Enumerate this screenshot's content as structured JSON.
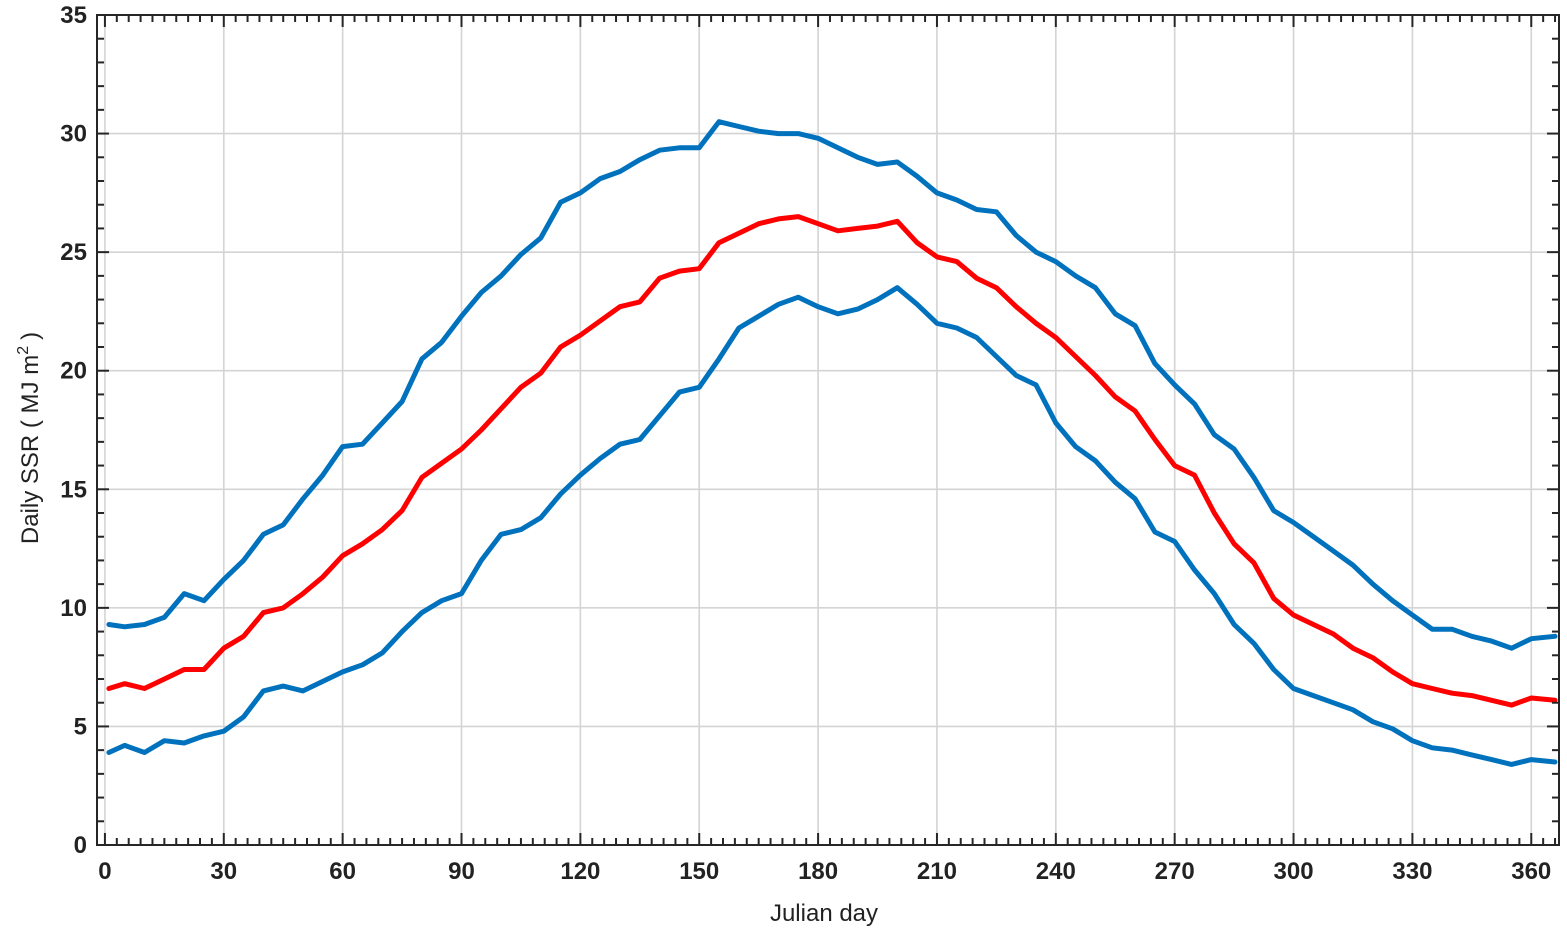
{
  "chart_data": {
    "type": "line",
    "title": "",
    "xlabel": "Julian day",
    "ylabel": "Daily SSR ( MJ m",
    "ylabel_sup": "2",
    "ylabel_close": ")",
    "xlim": [
      -2,
      367
    ],
    "ylim": [
      0,
      35
    ],
    "x_ticks": [
      0,
      30,
      60,
      90,
      120,
      150,
      180,
      210,
      240,
      270,
      300,
      330,
      360
    ],
    "x_tick_labels": [
      "0",
      "30",
      "60",
      "90",
      "120",
      "150",
      "180",
      "210",
      "240",
      "270",
      "300",
      "330",
      "360"
    ],
    "y_ticks": [
      0,
      5,
      10,
      15,
      20,
      25,
      30,
      35
    ],
    "y_tick_labels": [
      "0",
      "5",
      "10",
      "15",
      "20",
      "25",
      "30",
      "35"
    ],
    "grid": true,
    "series": [
      {
        "color": "#0072bd",
        "x": [
          1,
          5,
          10,
          15,
          20,
          25,
          30,
          35,
          40,
          45,
          50,
          55,
          60,
          65,
          70,
          75,
          80,
          85,
          90,
          95,
          100,
          105,
          110,
          115,
          120,
          125,
          130,
          135,
          140,
          145,
          150,
          155,
          160,
          165,
          170,
          175,
          180,
          185,
          190,
          195,
          200,
          205,
          210,
          215,
          220,
          225,
          230,
          235,
          240,
          245,
          250,
          255,
          260,
          265,
          270,
          275,
          280,
          285,
          290,
          295,
          300,
          305,
          310,
          315,
          320,
          325,
          330,
          335,
          340,
          345,
          350,
          355,
          360,
          366
        ],
        "values": [
          9.3,
          9.2,
          9.3,
          9.6,
          10.6,
          10.3,
          11.2,
          12.0,
          13.1,
          13.5,
          14.6,
          15.6,
          16.8,
          16.9,
          17.8,
          18.7,
          20.5,
          21.2,
          22.3,
          23.3,
          24.0,
          24.9,
          25.6,
          27.1,
          27.5,
          28.1,
          28.4,
          28.9,
          29.3,
          29.4,
          29.4,
          30.5,
          30.3,
          30.1,
          30.0,
          30.0,
          29.8,
          29.4,
          29.0,
          28.7,
          28.8,
          28.2,
          27.5,
          27.2,
          26.8,
          26.7,
          25.7,
          25.0,
          24.6,
          24.0,
          23.5,
          22.4,
          21.9,
          20.3,
          19.4,
          18.6,
          17.3,
          16.7,
          15.5,
          14.1,
          13.6,
          13.0,
          12.4,
          11.8,
          11.0,
          10.3,
          9.7,
          9.1,
          9.1,
          8.8,
          8.6,
          8.3,
          8.7,
          8.8
        ]
      },
      {
        "color": "#ff0000",
        "x": [
          1,
          5,
          10,
          15,
          20,
          25,
          30,
          35,
          40,
          45,
          50,
          55,
          60,
          65,
          70,
          75,
          80,
          85,
          90,
          95,
          100,
          105,
          110,
          115,
          120,
          125,
          130,
          135,
          140,
          145,
          150,
          155,
          160,
          165,
          170,
          175,
          180,
          185,
          190,
          195,
          200,
          205,
          210,
          215,
          220,
          225,
          230,
          235,
          240,
          245,
          250,
          255,
          260,
          265,
          270,
          275,
          280,
          285,
          290,
          295,
          300,
          305,
          310,
          315,
          320,
          325,
          330,
          335,
          340,
          345,
          350,
          355,
          360,
          366
        ],
        "values": [
          6.6,
          6.8,
          6.6,
          7.0,
          7.4,
          7.4,
          8.3,
          8.8,
          9.8,
          10.0,
          10.6,
          11.3,
          12.2,
          12.7,
          13.3,
          14.1,
          15.5,
          16.1,
          16.7,
          17.5,
          18.4,
          19.3,
          19.9,
          21.0,
          21.5,
          22.1,
          22.7,
          22.9,
          23.9,
          24.2,
          24.3,
          25.4,
          25.8,
          26.2,
          26.4,
          26.5,
          26.2,
          25.9,
          26.0,
          26.1,
          26.3,
          25.4,
          24.8,
          24.6,
          23.9,
          23.5,
          22.7,
          22.0,
          21.4,
          20.6,
          19.8,
          18.9,
          18.3,
          17.1,
          16.0,
          15.6,
          14.0,
          12.7,
          11.9,
          10.4,
          9.7,
          9.3,
          8.9,
          8.3,
          7.9,
          7.3,
          6.8,
          6.6,
          6.4,
          6.3,
          6.1,
          5.9,
          6.2,
          6.1
        ]
      },
      {
        "color": "#0072bd",
        "x": [
          1,
          5,
          10,
          15,
          20,
          25,
          30,
          35,
          40,
          45,
          50,
          55,
          60,
          65,
          70,
          75,
          80,
          85,
          90,
          95,
          100,
          105,
          110,
          115,
          120,
          125,
          130,
          135,
          140,
          145,
          150,
          155,
          160,
          165,
          170,
          175,
          180,
          185,
          190,
          195,
          200,
          205,
          210,
          215,
          220,
          225,
          230,
          235,
          240,
          245,
          250,
          255,
          260,
          265,
          270,
          275,
          280,
          285,
          290,
          295,
          300,
          305,
          310,
          315,
          320,
          325,
          330,
          335,
          340,
          345,
          350,
          355,
          360,
          366
        ],
        "values": [
          3.9,
          4.2,
          3.9,
          4.4,
          4.3,
          4.6,
          4.8,
          5.4,
          6.5,
          6.7,
          6.5,
          6.9,
          7.3,
          7.6,
          8.1,
          9.0,
          9.8,
          10.3,
          10.6,
          12.0,
          13.1,
          13.3,
          13.8,
          14.8,
          15.6,
          16.3,
          16.9,
          17.1,
          18.1,
          19.1,
          19.3,
          20.5,
          21.8,
          22.3,
          22.8,
          23.1,
          22.7,
          22.4,
          22.6,
          23.0,
          23.5,
          22.8,
          22.0,
          21.8,
          21.4,
          20.6,
          19.8,
          19.4,
          17.8,
          16.8,
          16.2,
          15.3,
          14.6,
          13.2,
          12.8,
          11.6,
          10.6,
          9.3,
          8.5,
          7.4,
          6.6,
          6.3,
          6.0,
          5.7,
          5.2,
          4.9,
          4.4,
          4.1,
          4.0,
          3.8,
          3.6,
          3.4,
          3.6,
          3.5
        ]
      }
    ]
  }
}
